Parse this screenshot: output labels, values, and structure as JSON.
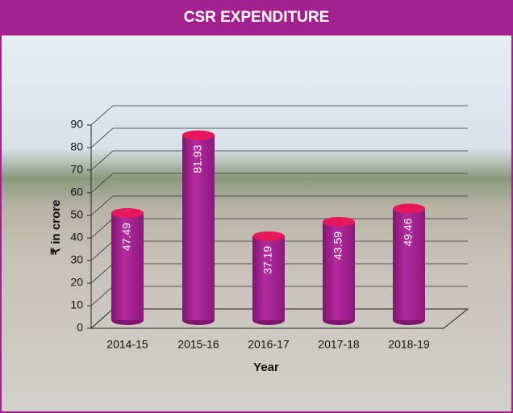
{
  "chart_data": {
    "type": "bar",
    "title": "CSR EXPENDITURE",
    "categories": [
      "2014-15",
      "2015-16",
      "2016-17",
      "2017-18",
      "2018-19"
    ],
    "values": [
      47.49,
      81.93,
      37.19,
      43.59,
      49.46
    ],
    "color": "#a3218f",
    "top_color": "#e5185c",
    "x_label": "Year",
    "y_label": "₹ in crore",
    "ylim": [
      0,
      90
    ],
    "yticks": [
      0,
      10,
      20,
      30,
      40,
      50,
      60,
      70,
      80,
      90
    ],
    "grid": true
  }
}
